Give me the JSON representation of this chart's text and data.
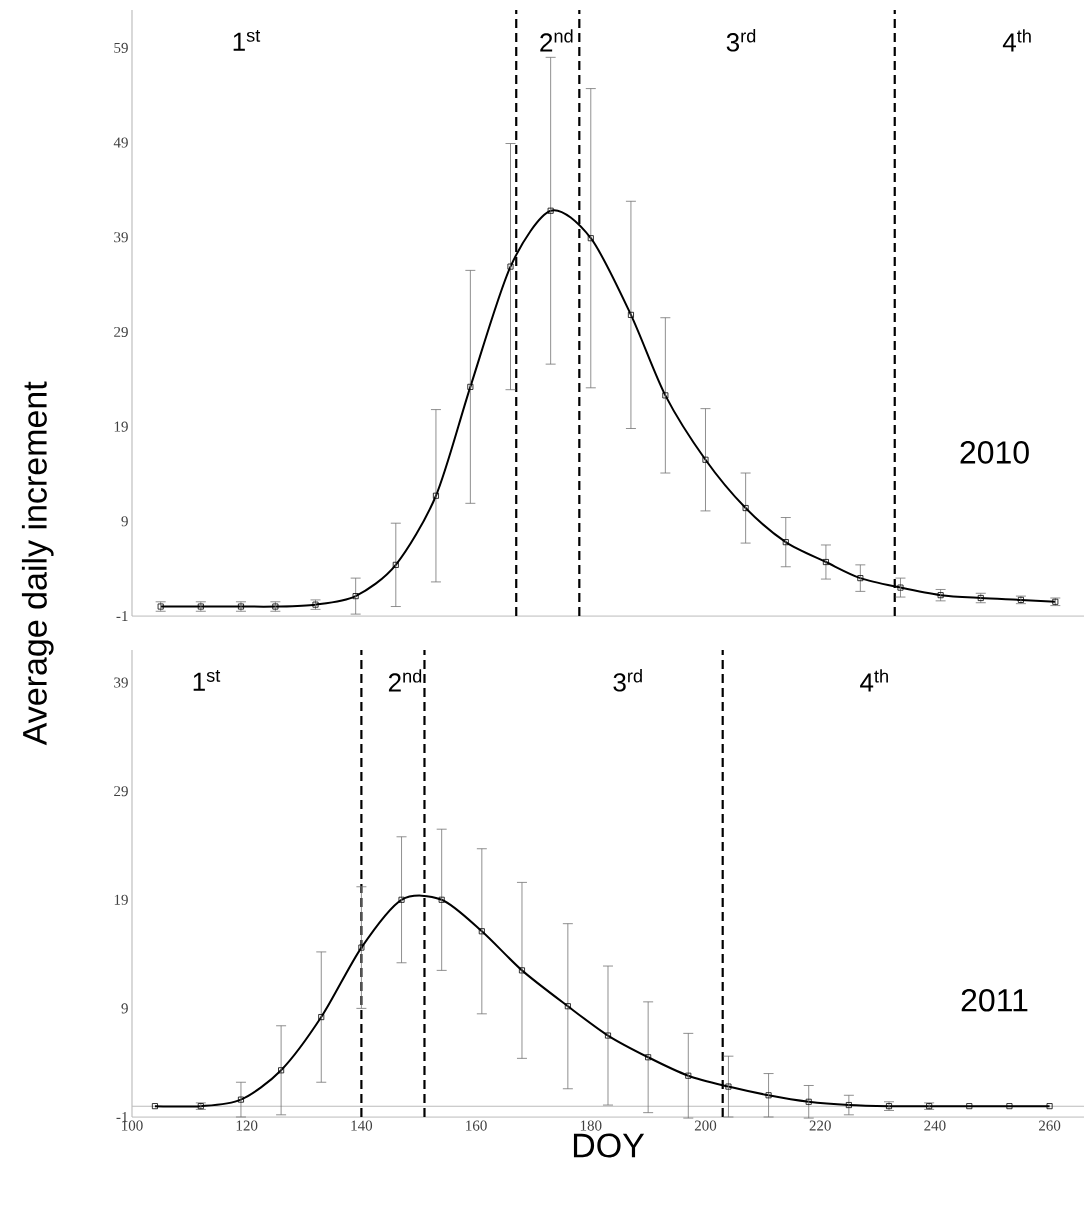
{
  "chart_data": [
    {
      "type": "line",
      "ylabel": "Average daily increment",
      "x": [
        105,
        112,
        119,
        125,
        132,
        139,
        146,
        153,
        159,
        166,
        173,
        180,
        187,
        193,
        200,
        207,
        214,
        221,
        227,
        234,
        241,
        248,
        255,
        261
      ],
      "series": [
        {
          "color": "#000000",
          "values": [
            0,
            0,
            0,
            0,
            0.2,
            1.1,
            4.4,
            11.7,
            23.2,
            35.9,
            41.8,
            38.9,
            30.8,
            22.3,
            15.5,
            10.4,
            6.8,
            4.7,
            3.0,
            2.0,
            1.2,
            0.9,
            0.7,
            0.5
          ],
          "errors": [
            0.5,
            0.5,
            0.5,
            0.5,
            0.5,
            1.9,
            4.4,
            9.1,
            12.3,
            13,
            16.2,
            15.8,
            12,
            8.2,
            5.4,
            3.7,
            2.6,
            1.8,
            1.4,
            1.0,
            0.6,
            0.5,
            0.4,
            0.4
          ]
        }
      ],
      "xlim": [
        100,
        266
      ],
      "ylim": [
        -1,
        63
      ],
      "xticks": [
        100,
        120,
        140,
        160,
        180,
        200,
        220,
        240,
        260
      ],
      "yticks": [
        -1,
        9,
        19,
        29,
        39,
        49,
        59
      ],
      "tick_labels": "y",
      "marker": "square",
      "line_style": "solid",
      "ref_lines": [
        {
          "axis": "x",
          "value": 167,
          "color": "#000000",
          "line_style": "dashed"
        },
        {
          "axis": "x",
          "value": 178,
          "color": "#000000",
          "line_style": "dashed"
        },
        {
          "axis": "x",
          "value": 233,
          "color": "#000000",
          "line_style": "dashed"
        }
      ],
      "annotations": [
        "1$^{st}$",
        "2$^{nd}$",
        "3$^{rd}$",
        "4$^{th}$",
        "2010"
      ]
    },
    {
      "type": "line",
      "xlabel": "DOY",
      "x": [
        104,
        112,
        119,
        126,
        133,
        140,
        147,
        154,
        161,
        168,
        176,
        183,
        190,
        197,
        204,
        211,
        218,
        225,
        232,
        239,
        246,
        253,
        260
      ],
      "series": [
        {
          "color": "#000000",
          "values": [
            0,
            0,
            0.6,
            3.3,
            8.2,
            14.6,
            19,
            19,
            16.1,
            12.5,
            9.2,
            6.5,
            4.5,
            2.8,
            1.8,
            1.0,
            0.4,
            0.1,
            0,
            0,
            0,
            0,
            0
          ],
          "errors": [
            null,
            0.3,
            1.6,
            4.1,
            6,
            5.6,
            5.8,
            6.5,
            7.6,
            8.1,
            7.6,
            6.4,
            5.1,
            3.9,
            2.8,
            2,
            1.5,
            0.9,
            0.4,
            0.3,
            null,
            null,
            null
          ]
        }
      ],
      "xlim": [
        100,
        266
      ],
      "ylim": [
        -1,
        42
      ],
      "xticks": [
        100,
        120,
        140,
        160,
        180,
        200,
        220,
        240,
        260
      ],
      "yticks": [
        -1,
        9,
        19,
        29,
        39
      ],
      "marker": "square",
      "line_style": "solid",
      "ref_lines": [
        {
          "axis": "y",
          "value": 0,
          "color": "#bbbbbb",
          "line_style": "solid"
        },
        {
          "axis": "x",
          "value": 140,
          "color": "#000000",
          "line_style": "dashed"
        },
        {
          "axis": "x",
          "value": 151,
          "color": "#000000",
          "line_style": "dashed"
        },
        {
          "axis": "x",
          "value": 203,
          "color": "#000000",
          "line_style": "dashed"
        }
      ],
      "annotations": [
        "1$^{st}$",
        "2$^{nd}$",
        "3$^{rd}$",
        "4$^{th}$",
        "2011"
      ]
    }
  ]
}
